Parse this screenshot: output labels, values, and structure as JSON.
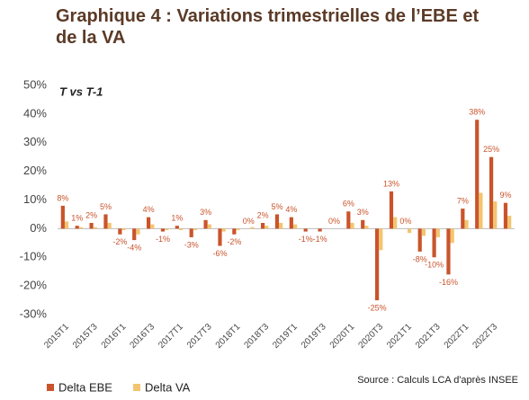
{
  "chart_data": {
    "type": "bar",
    "title": "Graphique 4 : Variations trimestrielles de l’EBE et de la VA",
    "subtitle": "T vs T-1",
    "source": "Source : Calculs LCA d'après INSEE",
    "categories": [
      "2015T1",
      null,
      "2015T3",
      null,
      "2016T1",
      null,
      "2016T3",
      null,
      "2017T1",
      null,
      "2017T3",
      null,
      "2018T1",
      null,
      "2018T3",
      null,
      "2019T1",
      null,
      "2019T3",
      null,
      "2020T1",
      null,
      "2020T3",
      null,
      "2021T1",
      null,
      "2021T3",
      null,
      "2022T1",
      null,
      "2022T3",
      null
    ],
    "series": [
      {
        "name": "Delta EBE",
        "color": "#c9542c",
        "values": [
          8,
          1,
          2,
          5,
          -2,
          -4,
          4,
          -1,
          1,
          -3,
          3,
          -6,
          -2,
          0,
          2,
          5,
          4,
          -1,
          -1,
          0,
          6,
          3,
          -25,
          13,
          0,
          -8,
          -10,
          -16,
          7,
          38,
          25,
          9
        ],
        "value_labels": [
          "8%",
          "1%",
          "2%",
          "5%",
          "-2%",
          "-4%",
          "4%",
          "-1%",
          "1%",
          "-3%",
          "3%",
          "-6%",
          "-2%",
          "0%",
          "2%",
          "5%",
          "4%",
          "-1%",
          "-1%",
          "0%",
          "6%",
          "3%",
          "-25%",
          "13%",
          "0%",
          "-8%",
          "-10%",
          "-16%",
          "7%",
          "38%",
          "25%",
          "9%"
        ]
      },
      {
        "name": "Delta VA",
        "color": "#f3c46f",
        "values": [
          2.5,
          0.5,
          0.5,
          2,
          -0.5,
          -2,
          1.5,
          -0.5,
          -0.5,
          -0.5,
          1.5,
          -1,
          -0.5,
          0.5,
          1,
          2,
          1.5,
          0,
          0,
          0,
          2,
          1,
          -7.5,
          4,
          -1.5,
          -2.5,
          -3,
          -5,
          3,
          12.5,
          9.5,
          4.5
        ]
      }
    ],
    "ylim": [
      -30,
      50
    ],
    "yticks": [
      {
        "value": -30,
        "label": "-30%"
      },
      {
        "value": -20,
        "label": "-20%"
      },
      {
        "value": -10,
        "label": "-10%"
      },
      {
        "value": 0,
        "label": "0%"
      },
      {
        "value": 10,
        "label": "10%"
      },
      {
        "value": 20,
        "label": "20%"
      },
      {
        "value": 30,
        "label": "30%"
      },
      {
        "value": 40,
        "label": "40%"
      },
      {
        "value": 50,
        "label": "50%"
      }
    ]
  }
}
